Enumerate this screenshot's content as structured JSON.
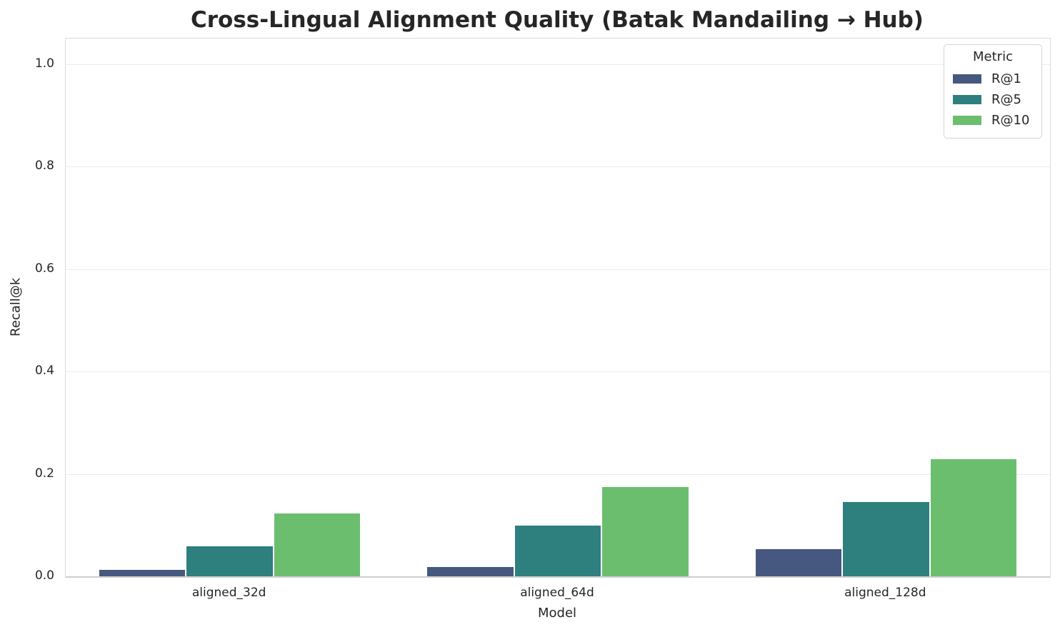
{
  "chart_data": {
    "type": "bar",
    "title": "Cross-Lingual Alignment Quality (Batak Mandailing → Hub)",
    "xlabel": "Model",
    "ylabel": "Recall@k",
    "categories": [
      "aligned_32d",
      "aligned_64d",
      "aligned_128d"
    ],
    "series": [
      {
        "name": "R@1",
        "color": "#46587f",
        "values": [
          0.013,
          0.018,
          0.053
        ]
      },
      {
        "name": "R@5",
        "color": "#2d807e",
        "values": [
          0.058,
          0.099,
          0.145
        ]
      },
      {
        "name": "R@10",
        "color": "#6bbe6e",
        "values": [
          0.123,
          0.174,
          0.229
        ]
      }
    ],
    "ylim": [
      0,
      1.05
    ],
    "ytick_labels": [
      "0.0",
      "0.2",
      "0.4",
      "0.6",
      "0.8",
      "1.0"
    ],
    "grid": true,
    "legend": {
      "title": "Metric",
      "position": "upper right"
    }
  }
}
